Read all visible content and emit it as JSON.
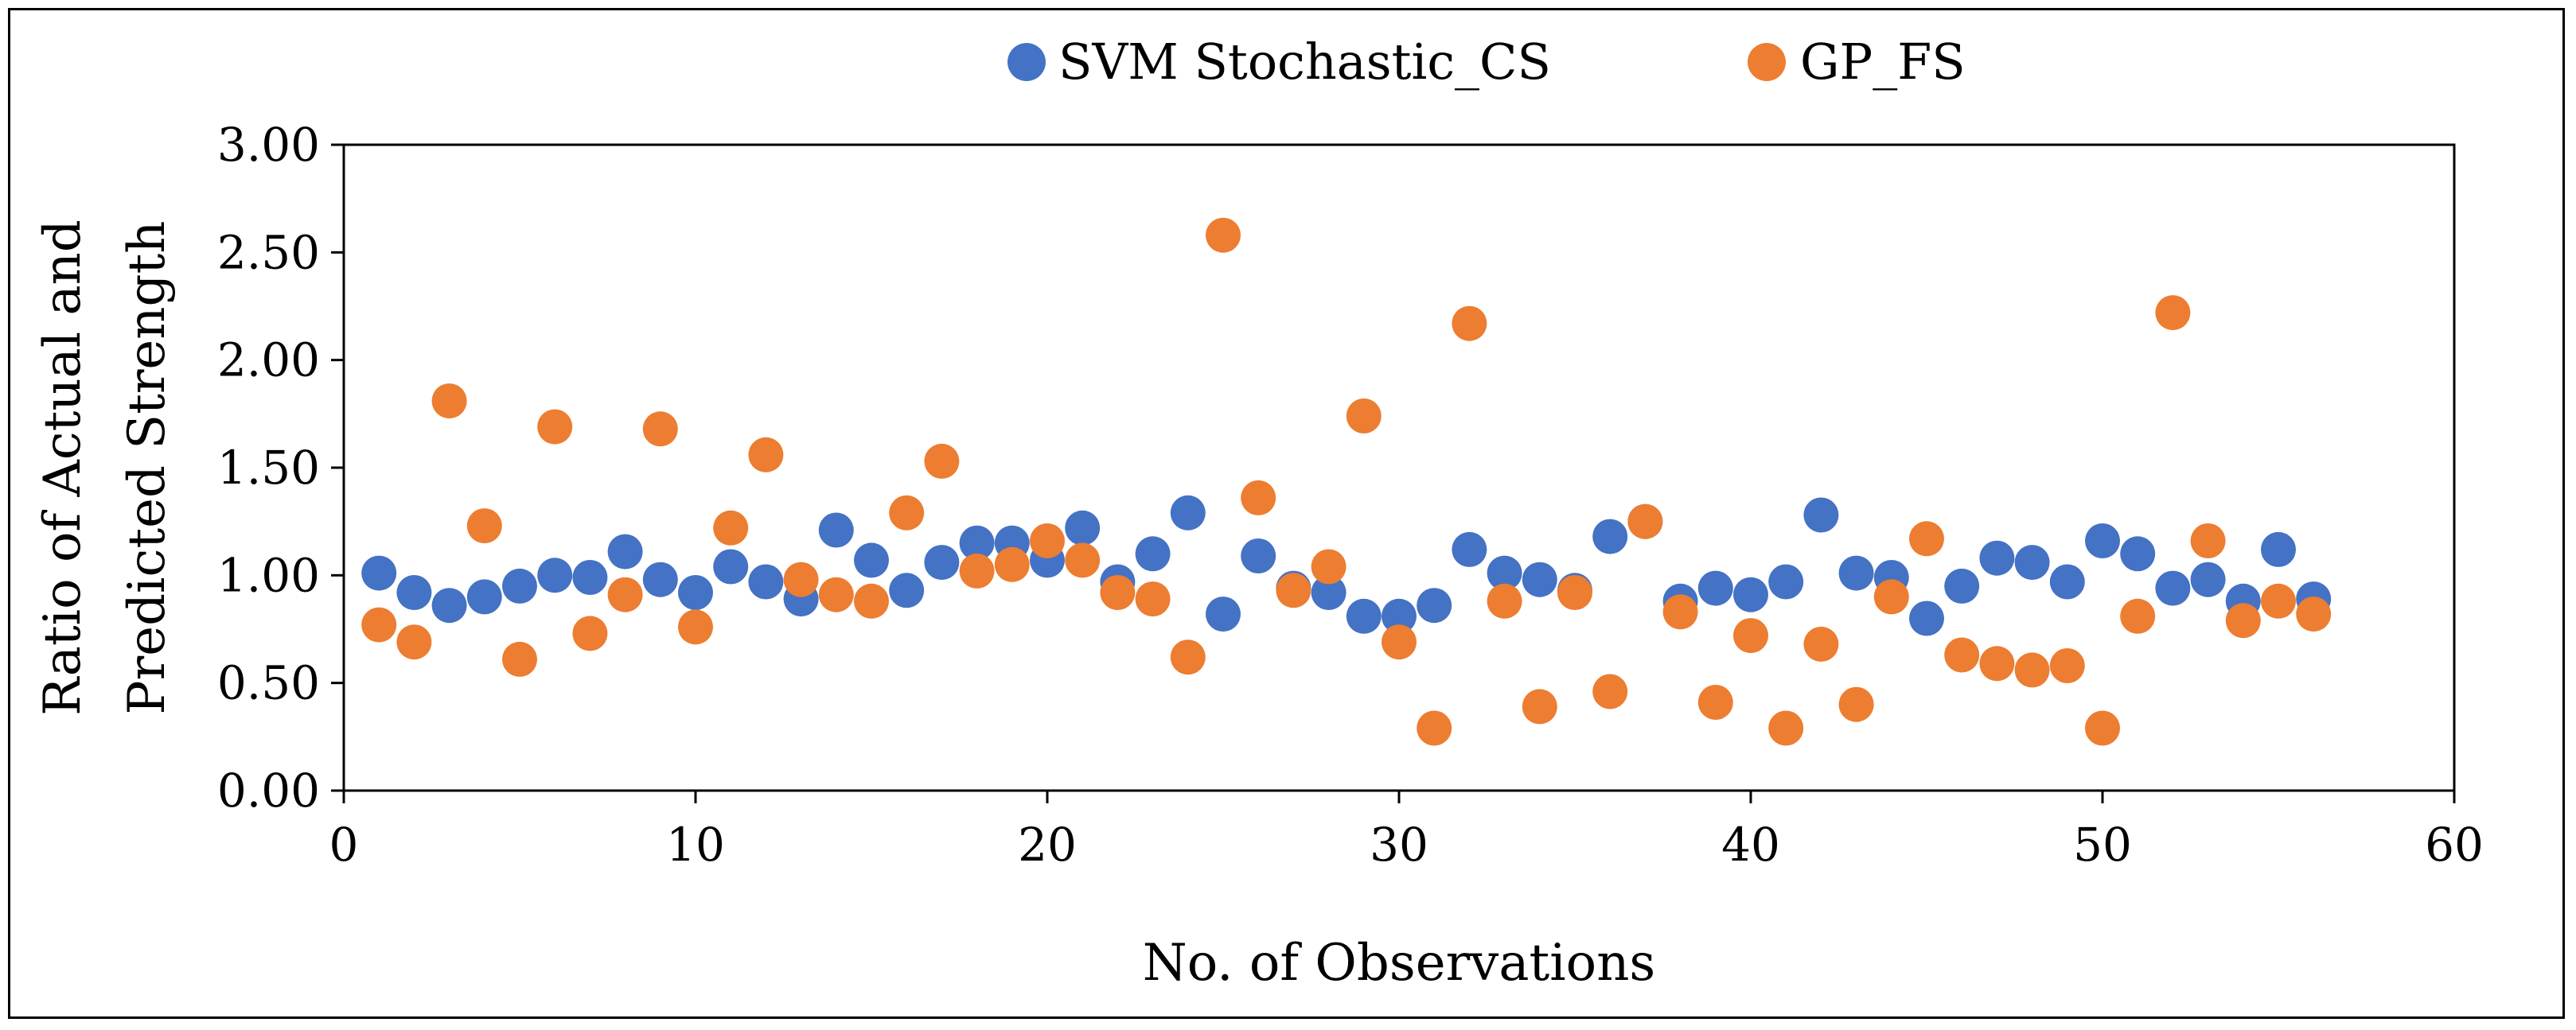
{
  "chart_data": {
    "type": "scatter",
    "title": "",
    "xlabel": "No. of Observations",
    "ylabel": [
      "Ratio of Actual and",
      "Predicted Strength"
    ],
    "xlim": [
      0,
      60
    ],
    "ylim": [
      0,
      3
    ],
    "xticks": [
      0,
      10,
      20,
      30,
      40,
      50,
      60
    ],
    "xtick_labels": [
      "0",
      "10",
      "20",
      "30",
      "40",
      "50",
      "60"
    ],
    "yticks": [
      0,
      0.5,
      1,
      1.5,
      2,
      2.5,
      3
    ],
    "ytick_labels": [
      "0.00",
      "0.50",
      "1.00",
      "1.50",
      "2.00",
      "2.50",
      "3.00"
    ],
    "grid": false,
    "legend_position": "top-center",
    "series": [
      {
        "name": "SVM Stochastic_CS",
        "color": "#4472C4",
        "points": [
          [
            1,
            1.01
          ],
          [
            2,
            0.92
          ],
          [
            3,
            0.86
          ],
          [
            4,
            0.9
          ],
          [
            5,
            0.95
          ],
          [
            6,
            1.0
          ],
          [
            7,
            0.99
          ],
          [
            8,
            1.11
          ],
          [
            9,
            0.98
          ],
          [
            10,
            0.92
          ],
          [
            11,
            1.04
          ],
          [
            12,
            0.97
          ],
          [
            13,
            0.89
          ],
          [
            14,
            1.21
          ],
          [
            15,
            1.07
          ],
          [
            16,
            0.93
          ],
          [
            17,
            1.06
          ],
          [
            18,
            1.15
          ],
          [
            19,
            1.15
          ],
          [
            20,
            1.07
          ],
          [
            21,
            1.22
          ],
          [
            22,
            0.97
          ],
          [
            23,
            1.1
          ],
          [
            24,
            1.29
          ],
          [
            25,
            0.82
          ],
          [
            26,
            1.09
          ],
          [
            27,
            0.94
          ],
          [
            28,
            0.92
          ],
          [
            29,
            0.81
          ],
          [
            30,
            0.81
          ],
          [
            31,
            0.86
          ],
          [
            32,
            1.12
          ],
          [
            33,
            1.01
          ],
          [
            34,
            0.98
          ],
          [
            35,
            0.93
          ],
          [
            36,
            1.18
          ],
          [
            37,
            1.25
          ],
          [
            38,
            0.88
          ],
          [
            39,
            0.94
          ],
          [
            40,
            0.91
          ],
          [
            41,
            0.97
          ],
          [
            42,
            1.28
          ],
          [
            43,
            1.01
          ],
          [
            44,
            0.99
          ],
          [
            45,
            0.8
          ],
          [
            46,
            0.95
          ],
          [
            47,
            1.08
          ],
          [
            48,
            1.06
          ],
          [
            49,
            0.97
          ],
          [
            50,
            1.16
          ],
          [
            51,
            1.1
          ],
          [
            52,
            0.94
          ],
          [
            53,
            0.98
          ],
          [
            54,
            0.88
          ],
          [
            55,
            1.12
          ],
          [
            56,
            0.89
          ]
        ]
      },
      {
        "name": "GP_FS",
        "color": "#ED7D31",
        "points": [
          [
            1,
            0.77
          ],
          [
            2,
            0.69
          ],
          [
            3,
            1.81
          ],
          [
            4,
            1.23
          ],
          [
            5,
            0.61
          ],
          [
            6,
            1.69
          ],
          [
            7,
            0.73
          ],
          [
            8,
            0.91
          ],
          [
            9,
            1.68
          ],
          [
            10,
            0.76
          ],
          [
            11,
            1.22
          ],
          [
            12,
            1.56
          ],
          [
            13,
            0.98
          ],
          [
            14,
            0.91
          ],
          [
            15,
            0.88
          ],
          [
            16,
            1.29
          ],
          [
            17,
            1.53
          ],
          [
            18,
            1.02
          ],
          [
            19,
            1.05
          ],
          [
            20,
            1.16
          ],
          [
            21,
            1.07
          ],
          [
            22,
            0.92
          ],
          [
            23,
            0.89
          ],
          [
            24,
            0.62
          ],
          [
            25,
            2.58
          ],
          [
            26,
            1.36
          ],
          [
            27,
            0.93
          ],
          [
            28,
            1.04
          ],
          [
            29,
            1.74
          ],
          [
            30,
            0.69
          ],
          [
            31,
            0.29
          ],
          [
            32,
            2.17
          ],
          [
            33,
            0.88
          ],
          [
            34,
            0.39
          ],
          [
            35,
            0.92
          ],
          [
            36,
            0.46
          ],
          [
            37,
            1.25
          ],
          [
            38,
            0.83
          ],
          [
            39,
            0.41
          ],
          [
            40,
            0.72
          ],
          [
            41,
            0.29
          ],
          [
            42,
            0.68
          ],
          [
            43,
            0.4
          ],
          [
            44,
            0.9
          ],
          [
            45,
            1.17
          ],
          [
            46,
            0.63
          ],
          [
            47,
            0.59
          ],
          [
            48,
            0.56
          ],
          [
            49,
            0.58
          ],
          [
            50,
            0.29
          ],
          [
            51,
            0.81
          ],
          [
            52,
            2.22
          ],
          [
            53,
            1.16
          ],
          [
            54,
            0.79
          ],
          [
            55,
            0.88
          ],
          [
            56,
            0.82
          ]
        ]
      }
    ]
  }
}
